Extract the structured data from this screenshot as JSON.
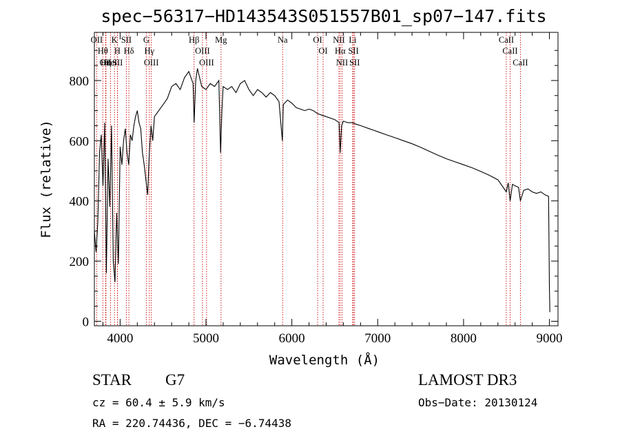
{
  "chart_data": {
    "type": "line",
    "title": "spec−56317−HD143543S051557B01_sp07−147.fits",
    "xlabel": "Wavelength (Å)",
    "ylabel": "Flux (relative)",
    "xlim": [
      3700,
      9100
    ],
    "ylim": [
      -15,
      960
    ],
    "xticks": [
      4000,
      5000,
      6000,
      7000,
      8000,
      9000
    ],
    "yticks": [
      0,
      200,
      400,
      600,
      800
    ],
    "series": [
      {
        "name": "spectrum",
        "x": [
          3700,
          3720,
          3740,
          3760,
          3780,
          3800,
          3820,
          3840,
          3860,
          3880,
          3900,
          3920,
          3940,
          3960,
          3980,
          4000,
          4020,
          4040,
          4060,
          4080,
          4100,
          4120,
          4140,
          4160,
          4180,
          4200,
          4220,
          4240,
          4260,
          4280,
          4300,
          4320,
          4340,
          4360,
          4380,
          4400,
          4450,
          4500,
          4550,
          4600,
          4650,
          4700,
          4750,
          4800,
          4850,
          4862,
          4880,
          4900,
          4950,
          5000,
          5050,
          5100,
          5150,
          5170,
          5185,
          5200,
          5250,
          5300,
          5350,
          5400,
          5450,
          5500,
          5550,
          5600,
          5650,
          5700,
          5750,
          5800,
          5850,
          5890,
          5900,
          5950,
          6000,
          6050,
          6100,
          6150,
          6200,
          6250,
          6300,
          6350,
          6400,
          6450,
          6500,
          6550,
          6563,
          6580,
          6600,
          6650,
          6700,
          6750,
          6800,
          6850,
          6900,
          6950,
          7000,
          7100,
          7200,
          7300,
          7400,
          7500,
          7600,
          7700,
          7800,
          7900,
          8000,
          8100,
          8200,
          8300,
          8400,
          8498,
          8520,
          8542,
          8570,
          8600,
          8640,
          8662,
          8700,
          8750,
          8800,
          8850,
          8900,
          8950,
          8990,
          9000,
          9005
        ],
        "y": [
          300,
          230,
          330,
          560,
          620,
          450,
          660,
          160,
          540,
          380,
          650,
          200,
          130,
          360,
          190,
          580,
          520,
          600,
          640,
          560,
          520,
          620,
          600,
          650,
          680,
          700,
          660,
          640,
          560,
          520,
          470,
          420,
          560,
          650,
          600,
          680,
          700,
          720,
          740,
          780,
          790,
          770,
          810,
          830,
          790,
          660,
          800,
          840,
          780,
          770,
          790,
          780,
          800,
          560,
          700,
          780,
          770,
          780,
          760,
          790,
          800,
          770,
          750,
          770,
          760,
          745,
          760,
          750,
          730,
          600,
          720,
          735,
          725,
          710,
          705,
          700,
          705,
          700,
          690,
          685,
          680,
          675,
          670,
          660,
          560,
          650,
          665,
          660,
          660,
          655,
          650,
          645,
          640,
          635,
          630,
          620,
          610,
          600,
          590,
          578,
          565,
          552,
          540,
          530,
          520,
          510,
          498,
          485,
          470,
          430,
          460,
          400,
          455,
          450,
          445,
          400,
          435,
          440,
          430,
          425,
          430,
          420,
          415,
          120,
          30
        ]
      }
    ],
    "spectral_lines": [
      {
        "name": "OII",
        "wavelength": 3727
      },
      {
        "name": "Hθ",
        "wavelength": 3798
      },
      {
        "name": "OII",
        "wavelength": 3830
      },
      {
        "name": "Hη",
        "wavelength": 3835
      },
      {
        "name": "HeI",
        "wavelength": 3889
      },
      {
        "name": "K",
        "wavelength": 3934
      },
      {
        "name": "SII",
        "wavelength": 3970
      },
      {
        "name": "H",
        "wavelength": 3968
      },
      {
        "name": "Hδ",
        "wavelength": 4102
      },
      {
        "name": "SII",
        "wavelength": 4072
      },
      {
        "name": "OIII",
        "wavelength": 4363
      },
      {
        "name": "Hγ",
        "wavelength": 4340
      },
      {
        "name": "G",
        "wavelength": 4305
      },
      {
        "name": "Hβ",
        "wavelength": 4861
      },
      {
        "name": "OIII",
        "wavelength": 4959
      },
      {
        "name": "OIII",
        "wavelength": 5007
      },
      {
        "name": "Mg",
        "wavelength": 5175
      },
      {
        "name": "Na",
        "wavelength": 5893
      },
      {
        "name": "OI",
        "wavelength": 6300
      },
      {
        "name": "OI",
        "wavelength": 6364
      },
      {
        "name": "NII",
        "wavelength": 6548
      },
      {
        "name": "Hα",
        "wavelength": 6563
      },
      {
        "name": "NII",
        "wavelength": 6584
      },
      {
        "name": "SII",
        "wavelength": 6717
      },
      {
        "name": "Li",
        "wavelength": 6708
      },
      {
        "name": "SII",
        "wavelength": 6731
      },
      {
        "name": "CaII",
        "wavelength": 8498
      },
      {
        "name": "CaII",
        "wavelength": 8542
      },
      {
        "name": "CaII",
        "wavelength": 8662
      }
    ],
    "line_color": "#000000",
    "marker_color": "#cc0000"
  },
  "info": {
    "object_class": "STAR",
    "subclass": "G7",
    "survey": "LAMOST DR3",
    "cz": "cz = 60.4 ± 5.9 km/s",
    "obs_date": "Obs−Date: 20130124",
    "coords": "RA = 220.74436, DEC =  −6.74438"
  }
}
